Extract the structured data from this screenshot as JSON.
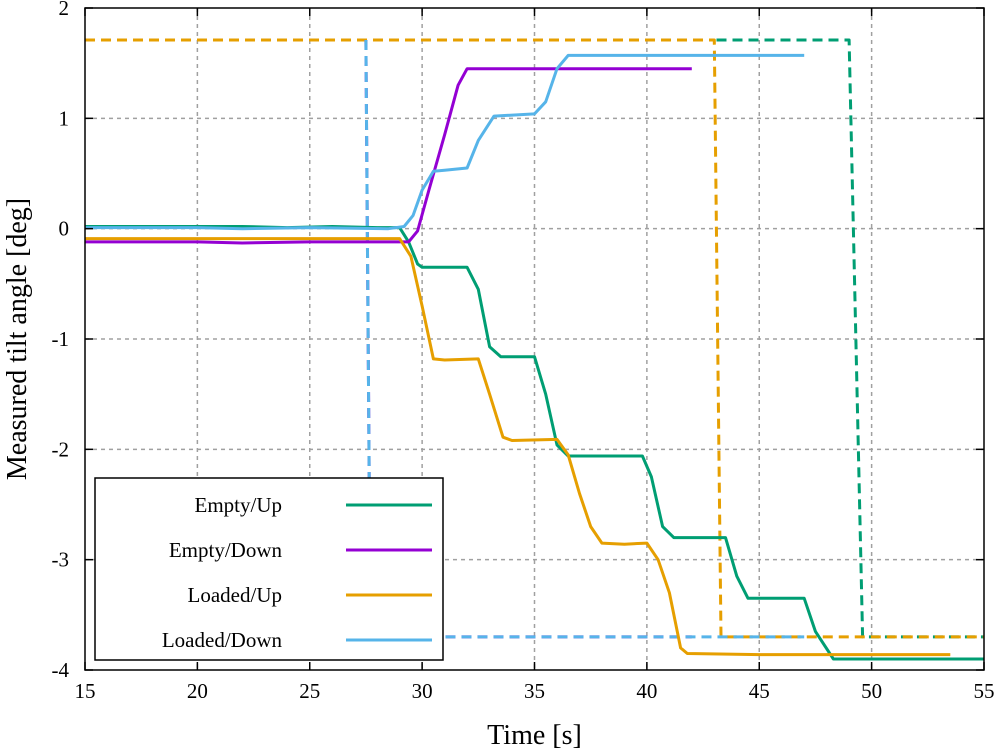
{
  "chart_data": {
    "type": "line",
    "xlabel": "Time [s]",
    "ylabel": "Measured tilt angle [deg]",
    "xlim": [
      15,
      55
    ],
    "ylim": [
      -4,
      2
    ],
    "x_ticks": [
      15,
      20,
      25,
      30,
      35,
      40,
      45,
      50,
      55
    ],
    "y_ticks": [
      -4,
      -3,
      -2,
      -1,
      0,
      1,
      2
    ],
    "grid": true,
    "legend_position": "bottom-left",
    "series": [
      {
        "name": "Empty/Up",
        "color": "#009e73",
        "style": "solid",
        "points": [
          [
            15,
            0.02
          ],
          [
            20,
            0.02
          ],
          [
            22,
            0.02
          ],
          [
            24,
            0.01
          ],
          [
            26,
            0.02
          ],
          [
            28,
            0.01
          ],
          [
            29,
            0.01
          ],
          [
            29.4,
            -0.12
          ],
          [
            29.8,
            -0.32
          ],
          [
            30,
            -0.35
          ],
          [
            31,
            -0.35
          ],
          [
            32,
            -0.35
          ],
          [
            32.5,
            -0.55
          ],
          [
            33,
            -1.07
          ],
          [
            33.5,
            -1.16
          ],
          [
            35,
            -1.16
          ],
          [
            35.5,
            -1.5
          ],
          [
            36,
            -1.96
          ],
          [
            36.5,
            -2.06
          ],
          [
            38,
            -2.06
          ],
          [
            39.8,
            -2.06
          ],
          [
            40.2,
            -2.25
          ],
          [
            40.7,
            -2.7
          ],
          [
            41.2,
            -2.8
          ],
          [
            43,
            -2.8
          ],
          [
            43.5,
            -2.8
          ],
          [
            44,
            -3.15
          ],
          [
            44.5,
            -3.35
          ],
          [
            46,
            -3.35
          ],
          [
            47,
            -3.35
          ],
          [
            47.5,
            -3.65
          ],
          [
            48.3,
            -3.9
          ],
          [
            50,
            -3.9
          ],
          [
            55,
            -3.9
          ]
        ]
      },
      {
        "name": "Empty/Down",
        "color": "#9400d3",
        "style": "solid",
        "points": [
          [
            15,
            -0.12
          ],
          [
            20,
            -0.12
          ],
          [
            22,
            -0.13
          ],
          [
            25,
            -0.12
          ],
          [
            28,
            -0.12
          ],
          [
            29.4,
            -0.12
          ],
          [
            29.8,
            -0.02
          ],
          [
            30.3,
            0.35
          ],
          [
            31,
            0.85
          ],
          [
            31.6,
            1.3
          ],
          [
            32,
            1.45
          ],
          [
            35,
            1.45
          ],
          [
            40,
            1.45
          ],
          [
            42,
            1.45
          ]
        ]
      },
      {
        "name": "Loaded/Up",
        "color": "#e69f00",
        "style": "solid",
        "points": [
          [
            15,
            -0.09
          ],
          [
            20,
            -0.09
          ],
          [
            25,
            -0.09
          ],
          [
            29,
            -0.09
          ],
          [
            29.5,
            -0.25
          ],
          [
            30,
            -0.7
          ],
          [
            30.5,
            -1.18
          ],
          [
            31,
            -1.19
          ],
          [
            32.5,
            -1.18
          ],
          [
            33,
            -1.5
          ],
          [
            33.6,
            -1.89
          ],
          [
            34,
            -1.92
          ],
          [
            36,
            -1.91
          ],
          [
            36.5,
            -2.05
          ],
          [
            37,
            -2.4
          ],
          [
            37.5,
            -2.7
          ],
          [
            38,
            -2.85
          ],
          [
            39,
            -2.86
          ],
          [
            40,
            -2.85
          ],
          [
            40.5,
            -3.0
          ],
          [
            41,
            -3.3
          ],
          [
            41.5,
            -3.8
          ],
          [
            41.8,
            -3.85
          ],
          [
            45,
            -3.86
          ],
          [
            50,
            -3.86
          ],
          [
            53.5,
            -3.86
          ]
        ]
      },
      {
        "name": "Loaded/Down",
        "color": "#56b4e9",
        "style": "solid",
        "points": [
          [
            15,
            0.01
          ],
          [
            20,
            0.01
          ],
          [
            22,
            0.0
          ],
          [
            25,
            0.01
          ],
          [
            28.5,
            0.0
          ],
          [
            29.2,
            0.02
          ],
          [
            29.6,
            0.12
          ],
          [
            30,
            0.35
          ],
          [
            30.5,
            0.52
          ],
          [
            31,
            0.53
          ],
          [
            32,
            0.55
          ],
          [
            32.5,
            0.8
          ],
          [
            33.2,
            1.02
          ],
          [
            35,
            1.04
          ],
          [
            35.5,
            1.15
          ],
          [
            36,
            1.45
          ],
          [
            36.5,
            1.57
          ],
          [
            38,
            1.57
          ],
          [
            40,
            1.57
          ],
          [
            45,
            1.57
          ],
          [
            47,
            1.57
          ]
        ]
      },
      {
        "name": "Empty/Up (dashed)",
        "color": "#009e73",
        "style": "dashed",
        "points": [
          [
            43.1,
            1.71
          ],
          [
            49,
            1.71
          ],
          [
            49.6,
            -3.7
          ],
          [
            55,
            -3.7
          ]
        ]
      },
      {
        "name": "Loaded/Up (dashed)",
        "color": "#e69f00",
        "style": "dashed",
        "points": [
          [
            15,
            1.71
          ],
          [
            43,
            1.71
          ],
          [
            43.3,
            -3.7
          ],
          [
            55,
            -3.7
          ]
        ]
      },
      {
        "name": "Empty/Down (dashed)",
        "color": "#9400d3",
        "style": "dashed",
        "points": [
          [
            27.5,
            1.71
          ],
          [
            27.7,
            -3.7
          ],
          [
            42,
            -3.7
          ]
        ]
      },
      {
        "name": "Loaded/Down (dashed)",
        "color": "#56b4e9",
        "style": "dashed",
        "points": [
          [
            27.5,
            1.71
          ],
          [
            27.7,
            -3.7
          ],
          [
            47,
            -3.7
          ]
        ]
      }
    ],
    "legend": [
      {
        "label": "Empty/Up",
        "color": "#009e73"
      },
      {
        "label": "Empty/Down",
        "color": "#9400d3"
      },
      {
        "label": "Loaded/Up",
        "color": "#e69f00"
      },
      {
        "label": "Loaded/Down",
        "color": "#56b4e9"
      }
    ]
  }
}
